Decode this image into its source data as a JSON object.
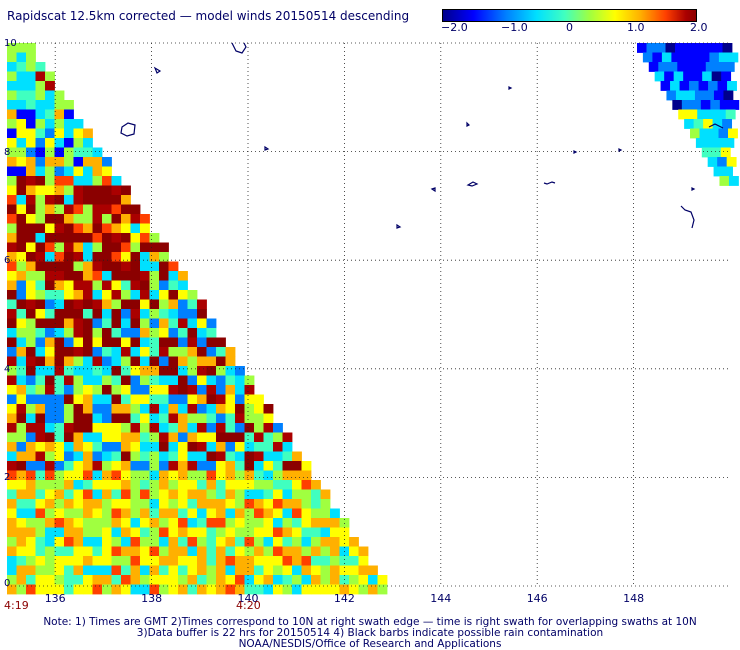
{
  "title": "Rapidscat 12.5km corrected — model winds 20150514 descending",
  "colorbar": {
    "ticks": [
      {
        "value": -2.0,
        "label": "−2.0"
      },
      {
        "value": -1.0,
        "label": "−1.0"
      },
      {
        "value": 0,
        "label": "0"
      },
      {
        "value": 1.0,
        "label": "1.0"
      },
      {
        "value": 2.0,
        "label": "2.0"
      }
    ],
    "range": [
      -2.0,
      2.0
    ],
    "colors": [
      "#00008b",
      "#0000ff",
      "#0080ff",
      "#00e0ff",
      "#40ffc0",
      "#a0ff40",
      "#ffff00",
      "#ffb000",
      "#ff4000",
      "#aa0000",
      "#8b0000"
    ]
  },
  "map": {
    "lon_range": [
      135,
      150
    ],
    "lat_range": [
      0,
      10
    ],
    "x_ticks": [
      "136",
      "138",
      "140",
      "142",
      "144",
      "146",
      "148"
    ],
    "y_ticks": [
      "0",
      "2",
      "4",
      "6",
      "8",
      "10"
    ],
    "grid": "dotted",
    "land_color": "#000066"
  },
  "time_labels": [
    {
      "label": "4:19",
      "lon": 135
    },
    {
      "label": "4:20",
      "lon": 139.9
    }
  ],
  "notes": [
    "Note: 1) Times are GMT 2)Times correspond to 10N at right swath edge — time is right swath for overlapping swaths at 10N",
    "3)Data buffer is 22 hrs for 20150514 4) Black barbs indicate possible rain contamination",
    "NOAA/NESDIS/Office of Research and Applications"
  ]
}
